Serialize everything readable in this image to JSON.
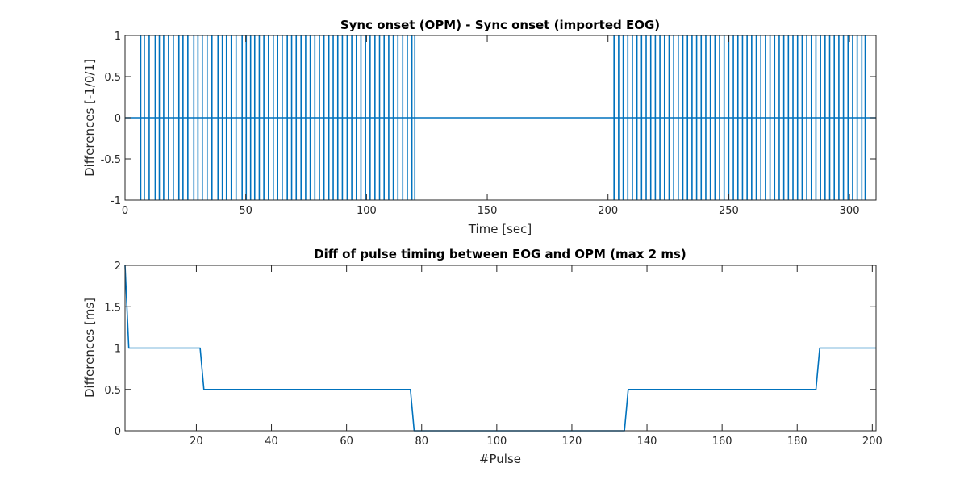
{
  "chart_data": [
    {
      "type": "line",
      "title": "Sync onset (OPM) - Sync onset (imported EOG)",
      "xlabel": "Time [sec]",
      "ylabel": "Differences [-1/0/1]",
      "xlim": [
        0,
        311
      ],
      "ylim": [
        -1,
        1
      ],
      "xticks": [
        0,
        50,
        100,
        150,
        200,
        250,
        300
      ],
      "xtick_labels": [
        "0",
        "50",
        "100",
        "150",
        "200",
        "250",
        "300"
      ],
      "yticks": [
        -1,
        -0.5,
        0,
        0.5,
        1
      ],
      "ytick_labels": [
        "-1",
        "-0.5",
        "0",
        "0.5",
        "1"
      ],
      "grid": false,
      "color": "#0072BD",
      "baseline": 0,
      "spike_times": [
        6.5,
        8,
        10,
        12.5,
        14.2,
        16,
        18,
        20,
        22.3,
        24,
        26,
        28.5,
        30.2,
        32,
        34,
        36,
        38.5,
        40.3,
        42,
        44,
        46,
        48.5,
        50.2,
        52,
        53.7,
        55.6,
        57.5,
        59.4,
        61.4,
        63.2,
        65.1,
        67.2,
        69,
        70.9,
        72.9,
        74.8,
        76.7,
        78.6,
        80.5,
        82.4,
        84.4,
        86.2,
        88.1,
        90,
        92,
        93.9,
        95.8,
        97.7,
        99.6,
        101.5,
        103.5,
        105.4,
        107.3,
        109.2,
        111.1,
        113,
        115,
        116.9,
        118.8,
        120,
        202.5,
        204.4,
        206.3,
        208.2,
        210.1,
        212,
        213.9,
        215.8,
        217.7,
        219.6,
        221.5,
        223.4,
        225.3,
        227.2,
        229.1,
        231,
        232.9,
        234.8,
        236.7,
        238.6,
        240.5,
        242.4,
        244.3,
        246.2,
        248.1,
        250,
        251.9,
        253.8,
        255.7,
        257.6,
        259.5,
        261.4,
        263.3,
        265.2,
        267.1,
        269,
        270.9,
        272.8,
        274.7,
        276.6,
        278.5,
        280.4,
        282.3,
        284.2,
        286.1,
        288,
        289.9,
        291.8,
        293.7,
        295.6,
        297.5,
        299.4,
        301.3,
        303.2,
        305.1,
        306.5
      ]
    },
    {
      "type": "line",
      "title": "Diff of pulse timing between EOG and OPM (max 2 ms)",
      "xlabel": "#Pulse",
      "ylabel": "Differences [ms]",
      "xlim": [
        1,
        201
      ],
      "ylim": [
        0,
        2
      ],
      "xticks": [
        20,
        40,
        60,
        80,
        100,
        120,
        140,
        160,
        180,
        200
      ],
      "xtick_labels": [
        "20",
        "40",
        "60",
        "80",
        "100",
        "120",
        "140",
        "160",
        "180",
        "200"
      ],
      "yticks": [
        0,
        0.5,
        1,
        1.5,
        2
      ],
      "ytick_labels": [
        "0",
        "0.5",
        "1",
        "1.5",
        "2"
      ],
      "grid": false,
      "color": "#0072BD",
      "x": [
        1,
        2,
        21,
        22,
        77,
        78,
        134,
        135,
        185,
        186,
        201
      ],
      "y": [
        2,
        1,
        1,
        0.5,
        0.5,
        0,
        0,
        0.5,
        0.5,
        1,
        1
      ]
    }
  ]
}
